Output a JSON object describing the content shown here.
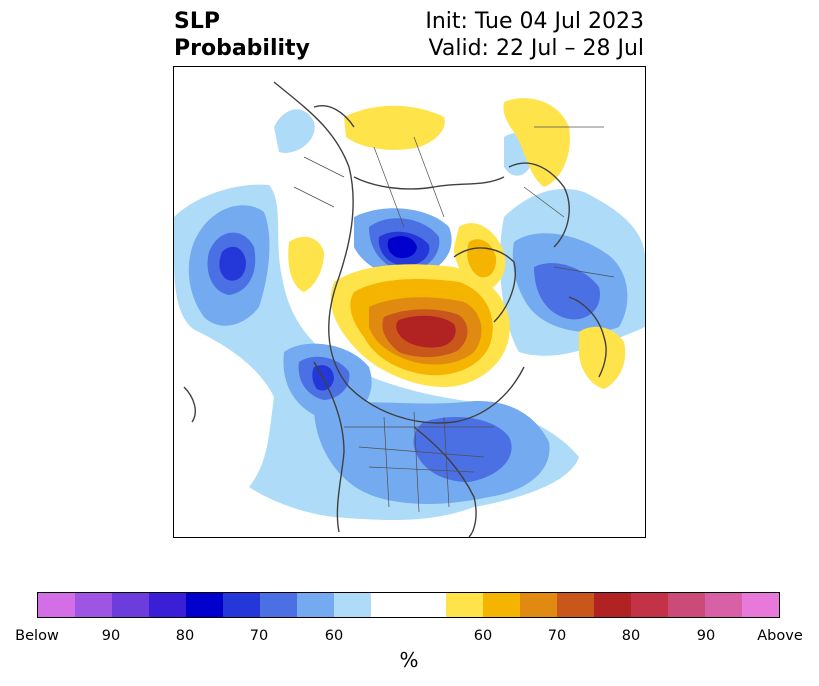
{
  "title": {
    "left_line1": "SLP",
    "left_line2": "Probability",
    "right_line1": "Init: Tue 04 Jul 2023",
    "right_line2": "Valid: 22 Jul – 28 Jul"
  },
  "colorbar": {
    "unit": "%",
    "colors": [
      "#d46ee6",
      "#9f55e3",
      "#6c3ddc",
      "#3b1fd6",
      "#0000cc",
      "#2438d9",
      "#4a70e3",
      "#74aaf0",
      "#aedcf8",
      "#ffffff",
      "#ffffff",
      "#fee34b",
      "#f4b400",
      "#e08a12",
      "#c9561b",
      "#b12223",
      "#c23347",
      "#cb4a78",
      "#d860a6",
      "#e978db"
    ],
    "ticks": [
      {
        "label": "Below"
      },
      {
        "label": "90"
      },
      {
        "label": "80"
      },
      {
        "label": "70"
      },
      {
        "label": "60"
      },
      {
        "label": "60"
      },
      {
        "label": "70"
      },
      {
        "label": "80"
      },
      {
        "label": "90"
      },
      {
        "label": "Above"
      }
    ]
  },
  "map": {
    "projection": "polar stereographic (North Pole)",
    "colors": {
      "land_outline": "#404040",
      "border": "#505050"
    }
  }
}
